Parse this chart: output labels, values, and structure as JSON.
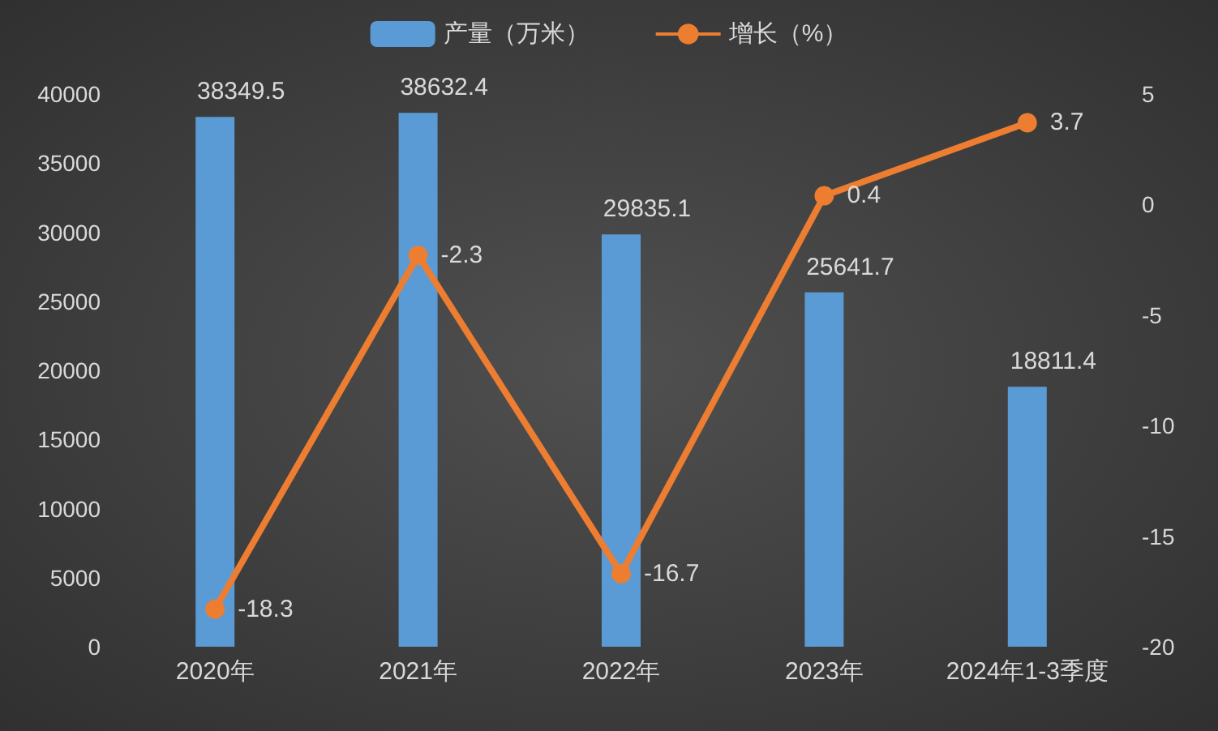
{
  "chart_data": {
    "type": "bar",
    "categories": [
      "2020年",
      "2021年",
      "2022年",
      "2023年",
      "2024年1-3季度"
    ],
    "series": [
      {
        "name": "产量（万米）",
        "color": "#5b9bd5",
        "values": [
          38349.5,
          38632.4,
          29835.1,
          25641.7,
          18811.4
        ]
      },
      {
        "name": "增长（%）",
        "type": "line",
        "axis": "y2",
        "color": "#ed7d31",
        "values": [
          -18.3,
          -2.3,
          -16.7,
          0.4,
          3.7
        ]
      }
    ],
    "ylim": [
      0,
      40000
    ],
    "yticks": [
      0,
      5000,
      10000,
      15000,
      20000,
      25000,
      30000,
      35000,
      40000
    ],
    "y2lim": [
      -20,
      5
    ],
    "y2ticks": [
      -20,
      -15,
      -10,
      -5,
      0,
      5
    ],
    "data_labels": true,
    "legend": "top",
    "grid": false,
    "marker": "circle",
    "line_style": "solid"
  }
}
